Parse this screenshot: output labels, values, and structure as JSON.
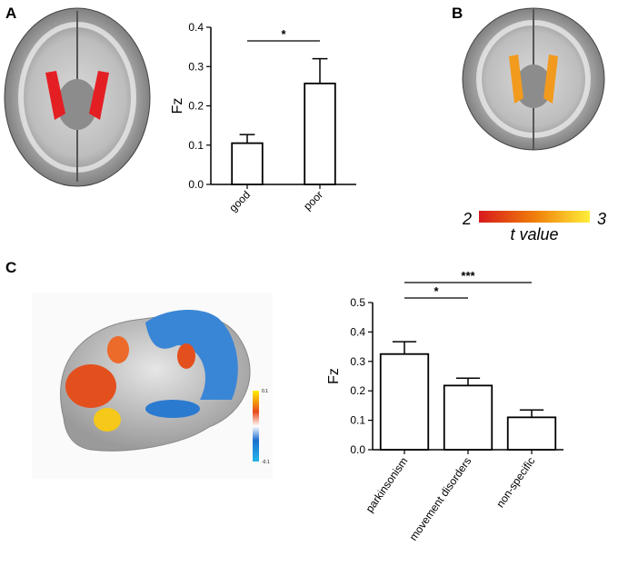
{
  "chart_data": [
    {
      "type": "bar",
      "ylabel": "Fz",
      "categories": [
        "good",
        "poor"
      ],
      "values": [
        0.105,
        0.257
      ],
      "errors": [
        0.022,
        0.063
      ],
      "color": "#ffffff",
      "ylim": [
        0,
        0.4
      ],
      "yticks": [
        {
          "value": 0,
          "label": "0.0"
        },
        0.1,
        0.2,
        0.3,
        0.4
      ],
      "annotations": [
        {
          "label": "*",
          "between": [
            "good",
            "poor"
          ]
        }
      ]
    },
    {
      "type": "bar",
      "ylabel": "Fz",
      "categories": [
        "parkinsonism",
        "movement disorders",
        "non-specific"
      ],
      "values": [
        0.325,
        0.218,
        0.11
      ],
      "errors": [
        0.042,
        0.025,
        0.025
      ],
      "color": "#ffffff",
      "ylim": [
        0,
        0.5
      ],
      "yticks": [
        {
          "value": 0,
          "label": "0.0"
        },
        0.1,
        0.2,
        0.3,
        0.4,
        0.5
      ],
      "annotations": [
        {
          "label": "*",
          "between": [
            "parkinsonism",
            "movement disorders"
          ]
        },
        {
          "label": "***",
          "between": [
            "parkinsonism",
            "non-specific"
          ]
        }
      ]
    }
  ],
  "figure": {
    "panel_labels": [
      "A",
      "B",
      "C"
    ],
    "colorbar_b": {
      "title": "t value",
      "ticks": [
        2,
        3
      ]
    },
    "colorbar_c": {
      "ticks": [
        0.1,
        -0.1
      ]
    }
  }
}
